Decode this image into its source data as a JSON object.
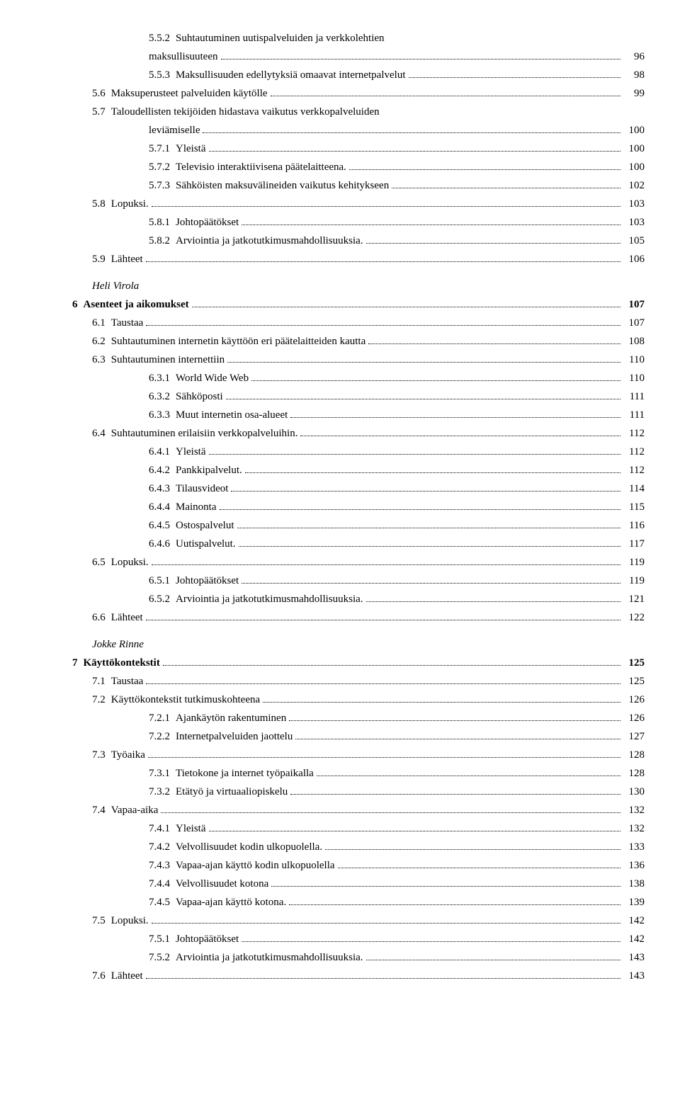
{
  "toc": [
    {
      "lvl": "l2",
      "num": "5.5.2",
      "title": "Suhtautuminen uutispalveluiden ja verkkolehtien",
      "page": "",
      "cont": true
    },
    {
      "lvl": "l2h",
      "num": "",
      "title": "maksullisuuteen",
      "page": "96"
    },
    {
      "lvl": "l2",
      "num": "5.5.3",
      "title": "Maksullisuuden edellytyksiä omaavat internetpalvelut",
      "page": "98"
    },
    {
      "lvl": "l1",
      "num": "5.6",
      "title": "Maksuperusteet palveluiden käytölle",
      "page": "99"
    },
    {
      "lvl": "l1",
      "num": "5.7",
      "title": "Taloudellisten tekijöiden hidastava vaikutus verkkopalveluiden",
      "page": "",
      "cont": true
    },
    {
      "lvl": "l2h",
      "num": "",
      "title": "leviämiselle",
      "page": "100"
    },
    {
      "lvl": "l2",
      "num": "5.7.1",
      "title": "Yleistä",
      "page": "100"
    },
    {
      "lvl": "l2",
      "num": "5.7.2",
      "title": "Televisio interaktiivisena päätelaitteena.",
      "page": "100"
    },
    {
      "lvl": "l2",
      "num": "5.7.3",
      "title": "Sähköisten maksuvälineiden vaikutus kehitykseen",
      "page": "102"
    },
    {
      "lvl": "l1",
      "num": "5.8",
      "title": "Lopuksi.",
      "page": "103"
    },
    {
      "lvl": "l2",
      "num": "5.8.1",
      "title": "Johtopäätökset",
      "page": "103"
    },
    {
      "lvl": "l2",
      "num": "5.8.2",
      "title": "Arviointia ja jatkotutkimusmahdollisuuksia.",
      "page": "105"
    },
    {
      "lvl": "l1",
      "num": "5.9",
      "title": "Lähteet",
      "page": "106"
    },
    {
      "author": "Heli Virola"
    },
    {
      "lvl": "chapter",
      "num": "6",
      "title": "Asenteet ja aikomukset",
      "page": "107",
      "bold": true
    },
    {
      "lvl": "l1",
      "num": "6.1",
      "title": "Taustaa",
      "page": "107"
    },
    {
      "lvl": "l1",
      "num": "6.2",
      "title": "Suhtautuminen internetin käyttöön eri päätelaitteiden kautta",
      "page": "108"
    },
    {
      "lvl": "l1",
      "num": "6.3",
      "title": "Suhtautuminen internettiin",
      "page": "110"
    },
    {
      "lvl": "l2",
      "num": "6.3.1",
      "title": "World Wide Web",
      "page": "110"
    },
    {
      "lvl": "l2",
      "num": "6.3.2",
      "title": "Sähköposti",
      "page": "111"
    },
    {
      "lvl": "l2",
      "num": "6.3.3",
      "title": "Muut internetin osa-alueet",
      "page": "111"
    },
    {
      "lvl": "l1",
      "num": "6.4",
      "title": "Suhtautuminen erilaisiin verkkopalveluihin.",
      "page": "112"
    },
    {
      "lvl": "l2",
      "num": "6.4.1",
      "title": "Yleistä",
      "page": "112"
    },
    {
      "lvl": "l2",
      "num": "6.4.2",
      "title": "Pankkipalvelut.",
      "page": "112"
    },
    {
      "lvl": "l2",
      "num": "6.4.3",
      "title": "Tilausvideot",
      "page": "114"
    },
    {
      "lvl": "l2",
      "num": "6.4.4",
      "title": "Mainonta",
      "page": "115"
    },
    {
      "lvl": "l2",
      "num": "6.4.5",
      "title": "Ostospalvelut",
      "page": "116"
    },
    {
      "lvl": "l2",
      "num": "6.4.6",
      "title": "Uutispalvelut.",
      "page": "117"
    },
    {
      "lvl": "l1",
      "num": "6.5",
      "title": "Lopuksi.",
      "page": "119"
    },
    {
      "lvl": "l2",
      "num": "6.5.1",
      "title": "Johtopäätökset",
      "page": "119"
    },
    {
      "lvl": "l2",
      "num": "6.5.2",
      "title": "Arviointia ja jatkotutkimusmahdollisuuksia.",
      "page": "121"
    },
    {
      "lvl": "l1",
      "num": "6.6",
      "title": "Lähteet",
      "page": "122"
    },
    {
      "author": "Jokke Rinne"
    },
    {
      "lvl": "chapter",
      "num": "7",
      "title": "Käyttökontekstit",
      "page": "125",
      "bold": true
    },
    {
      "lvl": "l1",
      "num": "7.1",
      "title": "Taustaa",
      "page": "125"
    },
    {
      "lvl": "l1",
      "num": "7.2",
      "title": "Käyttökontekstit tutkimuskohteena",
      "page": "126"
    },
    {
      "lvl": "l2",
      "num": "7.2.1",
      "title": "Ajankäytön rakentuminen",
      "page": "126"
    },
    {
      "lvl": "l2",
      "num": "7.2.2",
      "title": "Internetpalveluiden jaottelu",
      "page": "127"
    },
    {
      "lvl": "l1",
      "num": "7.3",
      "title": "Työaika",
      "page": "128"
    },
    {
      "lvl": "l2",
      "num": "7.3.1",
      "title": "Tietokone ja internet työpaikalla",
      "page": "128"
    },
    {
      "lvl": "l2",
      "num": "7.3.2",
      "title": "Etätyö ja virtuaaliopiskelu",
      "page": "130"
    },
    {
      "lvl": "l1",
      "num": "7.4",
      "title": "Vapaa-aika",
      "page": "132"
    },
    {
      "lvl": "l2",
      "num": "7.4.1",
      "title": "Yleistä",
      "page": "132"
    },
    {
      "lvl": "l2",
      "num": "7.4.2",
      "title": "Velvollisuudet kodin ulkopuolella.",
      "page": "133"
    },
    {
      "lvl": "l2",
      "num": "7.4.3",
      "title": "Vapaa-ajan käyttö kodin ulkopuolella",
      "page": "136"
    },
    {
      "lvl": "l2",
      "num": "7.4.4",
      "title": "Velvollisuudet kotona",
      "page": "138"
    },
    {
      "lvl": "l2",
      "num": "7.4.5",
      "title": "Vapaa-ajan käyttö kotona.",
      "page": "139"
    },
    {
      "lvl": "l1",
      "num": "7.5",
      "title": "Lopuksi.",
      "page": "142"
    },
    {
      "lvl": "l2",
      "num": "7.5.1",
      "title": "Johtopäätökset",
      "page": "142"
    },
    {
      "lvl": "l2",
      "num": "7.5.2",
      "title": "Arviointia ja jatkotutkimusmahdollisuuksia.",
      "page": "143"
    },
    {
      "lvl": "l1",
      "num": "7.6",
      "title": "Lähteet",
      "page": "143"
    }
  ]
}
